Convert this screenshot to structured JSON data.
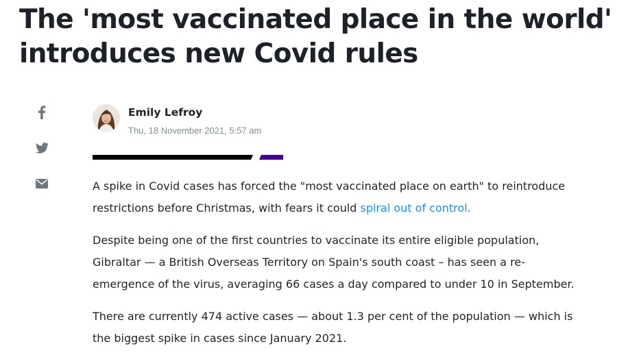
{
  "article": {
    "headline": "The 'most vaccinated place in the world' introduces new Covid rules",
    "author": {
      "name": "Emily Lefroy",
      "published": "Thu, 18 November 2021, 5:57 am"
    },
    "share": {
      "icons": [
        "facebook-icon",
        "twitter-icon",
        "email-icon"
      ],
      "icon_color": "#6e7780"
    },
    "divider_colors": {
      "primary": "#000000",
      "accent": "#400090"
    },
    "link_color": "#188fff",
    "paragraphs": [
      {
        "text": "A spike in Covid cases has forced the \"most vaccinated place on earth\" to reintroduce restrictions before Christmas, with fears it could ",
        "link": "spiral out of control."
      },
      {
        "text": "Despite being one of the first countries to vaccinate its entire eligible population, Gibraltar — a British Overseas Territory on Spain's south coast – has seen a re-emergence of the virus, averaging 66 cases a day compared to under 10 in September."
      },
      {
        "text": "There are currently 474 active cases — about 1.3 per cent of the population — which is the biggest spike in cases since January 2021."
      }
    ]
  }
}
